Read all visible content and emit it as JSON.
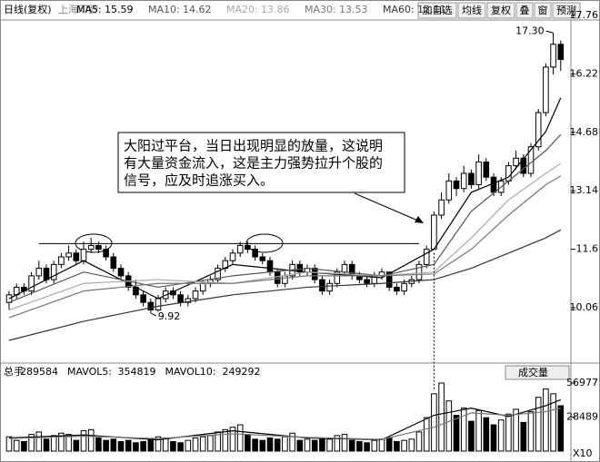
{
  "toolbar": {
    "mode": "日线(复权)",
    "stock": "上海印龄",
    "buttons": [
      "加自选",
      "均线",
      "复权",
      "叠",
      "窗",
      "预测"
    ]
  },
  "annotation_box": [
    "大阳过平台，当日出现明显的放量，这说明",
    "有大量资金流入，这是主力强势拉升个股的",
    "信号，应及时追涨买入。"
  ],
  "chart_data": [
    {
      "type": "candlestick",
      "ylim": [
        8.65,
        17.88
      ],
      "yticks": [
        10.06,
        11.6,
        13.14,
        14.68,
        16.22,
        17.76
      ],
      "ohlc": [
        [
          10.2,
          10.5,
          10.0,
          10.4
        ],
        [
          10.4,
          10.7,
          10.3,
          10.6
        ],
        [
          10.6,
          10.7,
          10.4,
          10.5
        ],
        [
          10.5,
          11.0,
          10.4,
          10.9
        ],
        [
          10.9,
          11.3,
          10.8,
          11.1
        ],
        [
          11.1,
          11.2,
          10.7,
          10.8
        ],
        [
          10.8,
          11.3,
          10.7,
          11.2
        ],
        [
          11.2,
          11.5,
          11.1,
          11.4
        ],
        [
          11.4,
          11.7,
          11.3,
          11.5
        ],
        [
          11.5,
          11.6,
          11.2,
          11.3
        ],
        [
          11.3,
          11.8,
          11.2,
          11.6
        ],
        [
          11.6,
          11.9,
          11.5,
          11.7
        ],
        [
          11.7,
          11.8,
          11.5,
          11.6
        ],
        [
          11.6,
          11.7,
          11.3,
          11.4
        ],
        [
          11.4,
          11.5,
          11.0,
          11.1
        ],
        [
          11.1,
          11.2,
          10.8,
          10.9
        ],
        [
          10.9,
          11.0,
          10.5,
          10.6
        ],
        [
          10.6,
          10.8,
          10.3,
          10.4
        ],
        [
          10.4,
          10.5,
          10.1,
          10.2
        ],
        [
          10.2,
          10.3,
          9.92,
          10.0
        ],
        [
          10.0,
          10.4,
          9.95,
          10.3
        ],
        [
          10.3,
          10.6,
          10.2,
          10.5
        ],
        [
          10.5,
          10.6,
          10.3,
          10.4
        ],
        [
          10.4,
          10.5,
          10.1,
          10.2
        ],
        [
          10.2,
          10.4,
          10.1,
          10.3
        ],
        [
          10.3,
          10.6,
          10.2,
          10.5
        ],
        [
          10.5,
          10.8,
          10.4,
          10.7
        ],
        [
          10.7,
          10.9,
          10.6,
          10.8
        ],
        [
          10.8,
          11.2,
          10.7,
          11.1
        ],
        [
          11.1,
          11.4,
          11.0,
          11.3
        ],
        [
          11.3,
          11.6,
          11.2,
          11.5
        ],
        [
          11.5,
          11.8,
          11.4,
          11.7
        ],
        [
          11.7,
          11.8,
          11.5,
          11.6
        ],
        [
          11.6,
          11.7,
          11.3,
          11.4
        ],
        [
          11.4,
          11.5,
          11.2,
          11.3
        ],
        [
          11.3,
          11.4,
          10.9,
          11.0
        ],
        [
          11.0,
          11.1,
          10.6,
          10.7
        ],
        [
          10.7,
          11.0,
          10.6,
          10.9
        ],
        [
          10.9,
          11.3,
          10.8,
          11.2
        ],
        [
          11.2,
          11.3,
          10.9,
          11.0
        ],
        [
          11.0,
          11.2,
          10.9,
          11.1
        ],
        [
          11.1,
          11.2,
          10.7,
          10.8
        ],
        [
          10.8,
          10.9,
          10.4,
          10.5
        ],
        [
          10.5,
          10.8,
          10.4,
          10.7
        ],
        [
          10.7,
          11.1,
          10.6,
          11.0
        ],
        [
          11.0,
          11.3,
          10.9,
          11.2
        ],
        [
          11.2,
          11.3,
          10.8,
          10.9
        ],
        [
          10.9,
          11.0,
          10.7,
          10.8
        ],
        [
          10.8,
          10.9,
          10.6,
          10.7
        ],
        [
          10.7,
          11.0,
          10.6,
          10.9
        ],
        [
          10.9,
          11.1,
          10.8,
          11.0
        ],
        [
          11.0,
          11.0,
          10.5,
          10.6
        ],
        [
          10.6,
          10.7,
          10.4,
          10.5
        ],
        [
          10.5,
          10.8,
          10.4,
          10.7
        ],
        [
          10.7,
          10.9,
          10.6,
          10.8
        ],
        [
          10.8,
          11.3,
          10.7,
          11.2
        ],
        [
          11.2,
          11.7,
          11.1,
          11.6
        ],
        [
          11.6,
          12.6,
          11.6,
          12.5
        ],
        [
          12.5,
          13.1,
          12.4,
          12.9
        ],
        [
          12.9,
          13.6,
          12.8,
          13.4
        ],
        [
          13.4,
          13.5,
          13.0,
          13.2
        ],
        [
          13.2,
          13.8,
          13.1,
          13.6
        ],
        [
          13.6,
          13.7,
          13.2,
          13.3
        ],
        [
          13.3,
          14.1,
          13.2,
          13.9
        ],
        [
          13.9,
          14.0,
          13.4,
          13.5
        ],
        [
          13.5,
          13.6,
          13.0,
          13.1
        ],
        [
          13.1,
          13.5,
          13.0,
          13.4
        ],
        [
          13.4,
          13.9,
          13.3,
          13.8
        ],
        [
          13.8,
          14.2,
          13.7,
          14.0
        ],
        [
          14.0,
          14.1,
          13.5,
          13.6
        ],
        [
          13.6,
          14.4,
          13.5,
          14.3
        ],
        [
          14.3,
          15.3,
          14.2,
          15.2
        ],
        [
          15.2,
          16.5,
          15.1,
          16.4
        ],
        [
          16.4,
          17.3,
          16.2,
          17.0
        ],
        [
          17.0,
          17.1,
          16.3,
          16.6
        ]
      ],
      "ma_x": [
        0,
        10,
        20,
        30,
        40,
        50,
        57,
        62,
        67,
        72,
        74
      ],
      "series": [
        {
          "name": "MA5:",
          "color": "#000000",
          "values": [
            10.3,
            11.3,
            10.3,
            11.2,
            11.0,
            10.85,
            11.6,
            13.1,
            13.5,
            14.7,
            15.59
          ]
        },
        {
          "name": "MA10:",
          "color": "#555555",
          "values": [
            10.2,
            11.0,
            10.6,
            10.9,
            11.1,
            10.9,
            11.2,
            12.6,
            13.4,
            14.2,
            14.62
          ]
        },
        {
          "name": "MA20:",
          "color": "#aaaaaa",
          "values": [
            10.0,
            10.7,
            10.8,
            10.7,
            11.0,
            10.9,
            11.0,
            11.9,
            12.9,
            13.6,
            13.86
          ]
        },
        {
          "name": "MA30:",
          "color": "#777777",
          "values": [
            9.8,
            10.5,
            10.7,
            10.7,
            10.9,
            10.9,
            10.95,
            11.6,
            12.5,
            13.3,
            13.53
          ]
        },
        {
          "name": "MA60:",
          "color": "#333333",
          "values": [
            9.2,
            9.7,
            10.1,
            10.4,
            10.6,
            10.7,
            10.8,
            11.1,
            11.5,
            11.9,
            12.11
          ]
        }
      ],
      "platform": 11.75,
      "annotations": [
        {
          "label": "17.30",
          "value": 17.3,
          "index": 73
        },
        {
          "label": "9.92",
          "value": 9.92,
          "index": 19
        }
      ]
    },
    {
      "type": "bar",
      "ylim": [
        0,
        58500
      ],
      "yticks": [
        28489,
        56977
      ],
      "unit": "X10",
      "indicator": "成交量",
      "header": [
        "总手",
        "289584",
        "MAVOL5:",
        "354819",
        "MAVOL10:",
        "249292"
      ],
      "values": [
        12000,
        9000,
        8000,
        14000,
        16000,
        10000,
        13000,
        15000,
        14000,
        9000,
        17000,
        18000,
        11000,
        9000,
        10000,
        8000,
        9000,
        7000,
        8000,
        10000,
        12000,
        11000,
        8000,
        7000,
        9000,
        11000,
        12000,
        13000,
        16000,
        18000,
        20000,
        22000,
        14000,
        10000,
        9000,
        11000,
        10000,
        12000,
        15000,
        9000,
        10000,
        9000,
        11000,
        10000,
        13000,
        14000,
        9000,
        8000,
        7000,
        9000,
        10000,
        11000,
        8000,
        9000,
        10000,
        16000,
        28000,
        48000,
        56977,
        42000,
        30000,
        36000,
        25000,
        34000,
        28000,
        22000,
        26000,
        31000,
        35000,
        24000,
        33000,
        45000,
        52000,
        48000,
        38000
      ],
      "ma_x": [
        0,
        10,
        20,
        30,
        40,
        50,
        57,
        62,
        67,
        72,
        74
      ],
      "series": [
        {
          "name": "MAVOL5",
          "color": "#000000",
          "values": [
            11000,
            13500,
            9500,
            17000,
            11000,
            9500,
            30000,
            36000,
            29000,
            38000,
            43000
          ]
        },
        {
          "name": "MAVOL10",
          "color": "#777777",
          "values": [
            10500,
            12500,
            10500,
            14500,
            11500,
            9800,
            20000,
            32000,
            30000,
            33000,
            36000
          ]
        }
      ]
    }
  ]
}
